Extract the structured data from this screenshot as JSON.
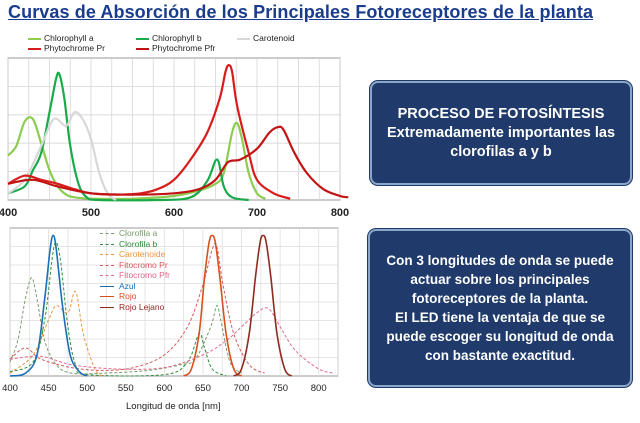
{
  "title": "Curvas de Absorción de los Principales Fotoreceptores de la planta",
  "box1": {
    "line1": "PROCESO DE FOTOSÍNTESIS",
    "line2": "Extremadamente importantes las",
    "line3": "clorofilas a y b"
  },
  "box2": {
    "line1": "Con 3 longitudes de onda se puede",
    "line2": "actuar sobre los principales",
    "line3": "fotoreceptores de la  planta.",
    "line4": "El LED tiene la ventaja de que se",
    "line5": "puede escoger su longitud de onda",
    "line6": "con bastante exactitud."
  },
  "chart_data": [
    {
      "type": "line",
      "xlim": [
        400,
        800
      ],
      "x_ticks": [
        "400",
        "500",
        "600",
        "700",
        "800"
      ],
      "x_tick_values": [
        400,
        500,
        600,
        700,
        800
      ],
      "grid": true,
      "legend_position": "top",
      "series": [
        {
          "name": "Chlorophyll a",
          "color": "#8ccc50",
          "points": [
            [
              400,
              0.33
            ],
            [
              410,
              0.4
            ],
            [
              420,
              0.58
            ],
            [
              430,
              0.6
            ],
            [
              440,
              0.42
            ],
            [
              450,
              0.22
            ],
            [
              460,
              0.1
            ],
            [
              470,
              0.04
            ],
            [
              480,
              0.02
            ],
            [
              500,
              0.01
            ],
            [
              550,
              0.01
            ],
            [
              600,
              0.03
            ],
            [
              630,
              0.07
            ],
            [
              650,
              0.12
            ],
            [
              660,
              0.2
            ],
            [
              670,
              0.5
            ],
            [
              676,
              0.57
            ],
            [
              682,
              0.45
            ],
            [
              690,
              0.2
            ],
            [
              700,
              0.05
            ],
            [
              710,
              0.01
            ]
          ]
        },
        {
          "name": "Chlorophyll b",
          "color": "#1aaa4a",
          "points": [
            [
              400,
              0.05
            ],
            [
              420,
              0.1
            ],
            [
              430,
              0.22
            ],
            [
              440,
              0.35
            ],
            [
              450,
              0.65
            ],
            [
              458,
              0.9
            ],
            [
              462,
              0.93
            ],
            [
              468,
              0.75
            ],
            [
              475,
              0.4
            ],
            [
              485,
              0.12
            ],
            [
              495,
              0.02
            ],
            [
              510,
              0.0
            ],
            [
              580,
              0.0
            ],
            [
              620,
              0.02
            ],
            [
              640,
              0.14
            ],
            [
              652,
              0.3
            ],
            [
              660,
              0.1
            ],
            [
              670,
              0.02
            ],
            [
              690,
              0.0
            ]
          ]
        },
        {
          "name": "Carotenoid",
          "color": "#d8d8d8",
          "points": [
            [
              400,
              0.05
            ],
            [
              420,
              0.15
            ],
            [
              440,
              0.4
            ],
            [
              455,
              0.6
            ],
            [
              470,
              0.55
            ],
            [
              480,
              0.65
            ],
            [
              490,
              0.6
            ],
            [
              500,
              0.45
            ],
            [
              510,
              0.2
            ],
            [
              520,
              0.05
            ],
            [
              530,
              0.0
            ]
          ]
        },
        {
          "name": "Phytochrome Pr",
          "color": "#d81c1c",
          "points": [
            [
              400,
              0.12
            ],
            [
              420,
              0.18
            ],
            [
              440,
              0.15
            ],
            [
              460,
              0.12
            ],
            [
              480,
              0.08
            ],
            [
              500,
              0.05
            ],
            [
              530,
              0.04
            ],
            [
              560,
              0.05
            ],
            [
              580,
              0.08
            ],
            [
              600,
              0.15
            ],
            [
              620,
              0.3
            ],
            [
              640,
              0.5
            ],
            [
              655,
              0.75
            ],
            [
              662,
              0.95
            ],
            [
              666,
              1.0
            ],
            [
              670,
              0.95
            ],
            [
              676,
              0.7
            ],
            [
              690,
              0.35
            ],
            [
              700,
              0.15
            ],
            [
              720,
              0.05
            ],
            [
              740,
              0.01
            ]
          ]
        },
        {
          "name": "Phytochrome Pfr",
          "color": "#c21414",
          "points": [
            [
              400,
              0.12
            ],
            [
              430,
              0.15
            ],
            [
              460,
              0.1
            ],
            [
              500,
              0.05
            ],
            [
              550,
              0.04
            ],
            [
              600,
              0.05
            ],
            [
              630,
              0.08
            ],
            [
              650,
              0.15
            ],
            [
              665,
              0.28
            ],
            [
              680,
              0.3
            ],
            [
              700,
              0.38
            ],
            [
              715,
              0.5
            ],
            [
              725,
              0.54
            ],
            [
              732,
              0.52
            ],
            [
              745,
              0.35
            ],
            [
              760,
              0.2
            ],
            [
              780,
              0.08
            ],
            [
              800,
              0.03
            ],
            [
              810,
              0.02
            ]
          ]
        }
      ]
    },
    {
      "type": "line",
      "xlabel": "Longitud de onda  [nm]",
      "xlim": [
        400,
        825
      ],
      "x_ticks": [
        "400",
        "450",
        "500",
        "550",
        "600",
        "650",
        "700",
        "750",
        "800"
      ],
      "x_tick_values": [
        400,
        450,
        500,
        550,
        600,
        650,
        700,
        750,
        800
      ],
      "grid": true,
      "legend_position": "top-left",
      "series": [
        {
          "name": "Clorofila a",
          "color": "#7a9b6a",
          "dash": "3,2",
          "points": [
            [
              400,
              0.1
            ],
            [
              410,
              0.25
            ],
            [
              420,
              0.55
            ],
            [
              428,
              0.7
            ],
            [
              435,
              0.55
            ],
            [
              445,
              0.25
            ],
            [
              460,
              0.08
            ],
            [
              480,
              0.02
            ],
            [
              520,
              0.02
            ],
            [
              580,
              0.04
            ],
            [
              620,
              0.08
            ],
            [
              640,
              0.12
            ],
            [
              660,
              0.35
            ],
            [
              668,
              0.5
            ],
            [
              673,
              0.4
            ],
            [
              685,
              0.1
            ],
            [
              700,
              0.02
            ]
          ]
        },
        {
          "name": "Clorofila b",
          "color": "#2e8b3a",
          "dash": "3,2",
          "points": [
            [
              400,
              0.03
            ],
            [
              430,
              0.1
            ],
            [
              445,
              0.4
            ],
            [
              455,
              0.85
            ],
            [
              460,
              0.95
            ],
            [
              466,
              0.8
            ],
            [
              475,
              0.35
            ],
            [
              485,
              0.08
            ],
            [
              500,
              0.01
            ],
            [
              600,
              0.01
            ],
            [
              630,
              0.1
            ],
            [
              645,
              0.3
            ],
            [
              652,
              0.2
            ],
            [
              662,
              0.05
            ],
            [
              680,
              0.0
            ]
          ]
        },
        {
          "name": "Carotenoide",
          "color": "#e8963c",
          "dash": "3,2",
          "points": [
            [
              400,
              0.02
            ],
            [
              430,
              0.15
            ],
            [
              450,
              0.4
            ],
            [
              460,
              0.5
            ],
            [
              475,
              0.45
            ],
            [
              485,
              0.6
            ],
            [
              495,
              0.3
            ],
            [
              510,
              0.05
            ],
            [
              520,
              0.0
            ]
          ]
        },
        {
          "name": "Fitocromo Pr",
          "color": "#d85a5a",
          "dash": "3,2",
          "points": [
            [
              400,
              0.12
            ],
            [
              420,
              0.2
            ],
            [
              440,
              0.12
            ],
            [
              480,
              0.06
            ],
            [
              520,
              0.04
            ],
            [
              560,
              0.06
            ],
            [
              600,
              0.15
            ],
            [
              630,
              0.35
            ],
            [
              650,
              0.65
            ],
            [
              662,
              0.9
            ],
            [
              668,
              0.92
            ],
            [
              676,
              0.65
            ],
            [
              690,
              0.3
            ],
            [
              710,
              0.08
            ],
            [
              730,
              0.02
            ]
          ]
        },
        {
          "name": "Fitocromo Pfr",
          "color": "#e06a8a",
          "dash": "3,2",
          "points": [
            [
              400,
              0.12
            ],
            [
              440,
              0.14
            ],
            [
              480,
              0.08
            ],
            [
              540,
              0.05
            ],
            [
              600,
              0.06
            ],
            [
              650,
              0.15
            ],
            [
              680,
              0.25
            ],
            [
              700,
              0.35
            ],
            [
              720,
              0.45
            ],
            [
              735,
              0.48
            ],
            [
              750,
              0.35
            ],
            [
              770,
              0.18
            ],
            [
              800,
              0.05
            ],
            [
              820,
              0.02
            ]
          ]
        },
        {
          "name": "Azul",
          "color": "#1a6eb4",
          "points": [
            [
              400,
              0.0
            ],
            [
              420,
              0.02
            ],
            [
              435,
              0.15
            ],
            [
              445,
              0.55
            ],
            [
              452,
              0.9
            ],
            [
              456,
              1.0
            ],
            [
              460,
              0.9
            ],
            [
              468,
              0.5
            ],
            [
              478,
              0.15
            ],
            [
              490,
              0.03
            ],
            [
              500,
              0.0
            ]
          ]
        },
        {
          "name": "Rojo",
          "color": "#d8501e",
          "points": [
            [
              625,
              0.0
            ],
            [
              635,
              0.05
            ],
            [
              645,
              0.3
            ],
            [
              652,
              0.7
            ],
            [
              658,
              0.95
            ],
            [
              662,
              1.0
            ],
            [
              666,
              0.95
            ],
            [
              672,
              0.7
            ],
            [
              680,
              0.3
            ],
            [
              690,
              0.05
            ],
            [
              700,
              0.0
            ]
          ]
        },
        {
          "name": "Rojo Lejano",
          "color": "#8e2a1e",
          "points": [
            [
              690,
              0.0
            ],
            [
              700,
              0.05
            ],
            [
              710,
              0.3
            ],
            [
              718,
              0.7
            ],
            [
              724,
              0.95
            ],
            [
              728,
              1.0
            ],
            [
              732,
              0.95
            ],
            [
              738,
              0.7
            ],
            [
              746,
              0.3
            ],
            [
              756,
              0.05
            ],
            [
              765,
              0.0
            ]
          ]
        }
      ]
    }
  ]
}
